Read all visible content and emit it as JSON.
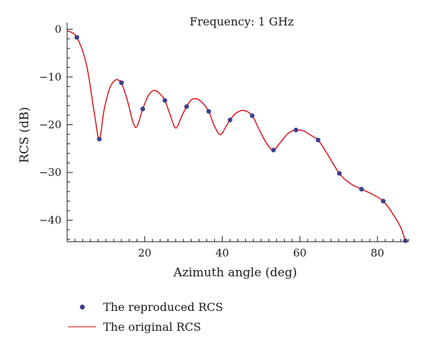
{
  "chart_data": {
    "type": "line",
    "title": "",
    "annotation": "Frequency: 1 GHz",
    "xlabel": "Azimuth angle (deg)",
    "ylabel": "RCS (dB)",
    "xlim": [
      0,
      88
    ],
    "ylim": [
      -44.5,
      0.5
    ],
    "xticks": [
      20,
      40,
      60,
      80
    ],
    "yticks": [
      0,
      -10,
      -20,
      -30,
      -40
    ],
    "x_minor_step": 2,
    "y_minor_step": 2,
    "grid": false,
    "legend_position": "bottom-left, below plot",
    "colors": {
      "original": "#d8141b",
      "reproduced": "#3d3f8f",
      "axes": "#1a1a1a"
    },
    "series": [
      {
        "name": "The reproduced RCS",
        "style": "markers",
        "x": [
          2.5,
          8.3,
          14.0,
          19.5,
          25.2,
          30.8,
          36.5,
          42.0,
          47.7,
          53.2,
          59.0,
          64.7,
          70.2,
          75.9,
          81.5,
          87.2
        ],
        "y": [
          -1.7,
          -23.0,
          -11.2,
          -16.7,
          -14.9,
          -16.2,
          -17.2,
          -19.0,
          -18.1,
          -25.3,
          -21.1,
          -23.2,
          -30.2,
          -33.5,
          -36.0,
          -44.3
        ]
      },
      {
        "name": "The original RCS",
        "style": "line",
        "x": [
          0,
          2.5,
          5.0,
          7.0,
          8.3,
          9.5,
          11.0,
          12.5,
          13.5,
          14.0,
          15.5,
          17.0,
          18.0,
          19.5,
          21.0,
          22.5,
          24.0,
          25.2,
          26.5,
          28.0,
          29.5,
          30.8,
          32.0,
          33.5,
          35.0,
          36.5,
          38.0,
          39.5,
          41.0,
          42.0,
          43.5,
          45.5,
          47.7,
          49.5,
          51.5,
          53.2,
          55.0,
          57.0,
          59.0,
          61.0,
          63.0,
          64.7,
          67.0,
          70.2,
          73.0,
          75.9,
          78.5,
          81.5,
          84.0,
          86.0,
          87.2
        ],
        "y": [
          -0.3,
          -1.7,
          -7.5,
          -17.5,
          -23.0,
          -17.0,
          -12.3,
          -10.6,
          -10.8,
          -11.2,
          -14.8,
          -19.5,
          -20.4,
          -16.7,
          -13.8,
          -12.8,
          -13.6,
          -14.9,
          -17.8,
          -20.7,
          -18.3,
          -16.2,
          -14.8,
          -14.6,
          -15.5,
          -17.2,
          -20.3,
          -22.1,
          -20.3,
          -19.0,
          -17.6,
          -17.0,
          -18.1,
          -21.0,
          -24.0,
          -25.3,
          -23.7,
          -21.8,
          -21.1,
          -21.3,
          -22.3,
          -23.2,
          -26.0,
          -30.2,
          -32.3,
          -33.5,
          -34.5,
          -36.0,
          -38.7,
          -41.5,
          -44.3
        ]
      }
    ]
  }
}
